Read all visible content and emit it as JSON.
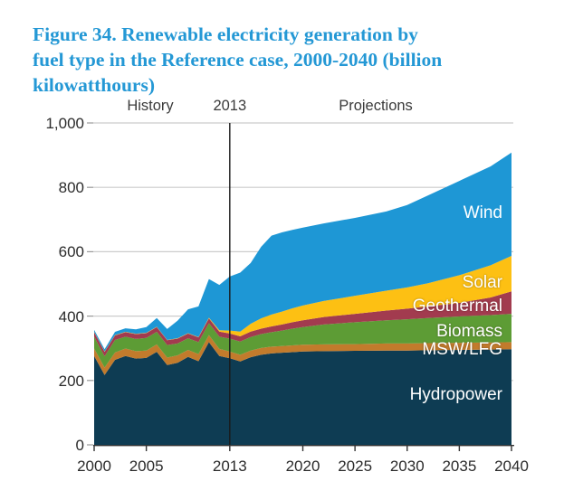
{
  "figure": {
    "title_lines": [
      "Figure 34. Renewable electricity generation by",
      "fuel type in the Reference case, 2000-2040 (billion",
      "kilowatthours)"
    ],
    "title_color": "#2498d5"
  },
  "chart_data": {
    "type": "area",
    "stacked": true,
    "title": "Figure 34. Renewable electricity generation by fuel type in the Reference case, 2000-2040 (billion kilowatthours)",
    "unit": "billion kilowatthours",
    "xlabel": "",
    "ylabel": "",
    "ylim": [
      0,
      1000
    ],
    "grid": true,
    "grid_color": "#cccccc",
    "axis_color": "#333333",
    "tick_color": "#999999",
    "divider_year": 2013,
    "divider_color": "#1a1a1a",
    "legend_position": "labels-on-chart-right",
    "header_annotations": [
      {
        "label": "History"
      },
      {
        "label": "2013"
      },
      {
        "label": "Projections"
      }
    ],
    "y_ticks": [
      0,
      200,
      400,
      600,
      800,
      1000
    ],
    "y_tick_labels": [
      "0",
      "200",
      "400",
      "600",
      "800",
      "1,000"
    ],
    "x_tick_years": [
      2000,
      2005,
      2013,
      2020,
      2025,
      2030,
      2035,
      2040
    ],
    "x_tick_labels": [
      "2000",
      "2005",
      "2013",
      "2020",
      "2025",
      "2030",
      "2035",
      "2040"
    ],
    "x": [
      2000,
      2001,
      2002,
      2003,
      2004,
      2005,
      2006,
      2007,
      2008,
      2009,
      2010,
      2011,
      2012,
      2013,
      2014,
      2015,
      2016,
      2017,
      2018,
      2019,
      2020,
      2022,
      2025,
      2028,
      2030,
      2032,
      2035,
      2038,
      2040
    ],
    "series": [
      {
        "name": "hydropower",
        "label": "Hydropower",
        "color": "#0e3c53",
        "values": [
          276,
          217,
          264,
          276,
          268,
          270,
          289,
          248,
          255,
          273,
          260,
          319,
          276,
          269,
          259,
          272,
          280,
          284,
          286,
          288,
          290,
          291,
          292,
          293,
          293,
          294,
          295,
          296,
          297
        ]
      },
      {
        "name": "msw_lfg",
        "label": "MSW/LFG",
        "color": "#c27b2c",
        "values": [
          23,
          23,
          23,
          23,
          23,
          23,
          23,
          23,
          23,
          22,
          22,
          22,
          22,
          21,
          21,
          21,
          21,
          21,
          21,
          21,
          21,
          21,
          21,
          22,
          22,
          22,
          22,
          22,
          22
        ]
      },
      {
        "name": "biomass",
        "label": "Biomass",
        "color": "#5d9c35",
        "values": [
          37,
          35,
          39,
          37,
          38,
          39,
          39,
          39,
          37,
          36,
          37,
          37,
          38,
          40,
          41,
          42,
          43,
          45,
          48,
          52,
          55,
          62,
          68,
          72,
          75,
          78,
          82,
          85,
          88
        ]
      },
      {
        "name": "geothermal",
        "label": "Geothermal",
        "color": "#a23b4f",
        "values": [
          14,
          14,
          14,
          14,
          15,
          15,
          15,
          15,
          15,
          15,
          15,
          15,
          16,
          16,
          16,
          17,
          17,
          18,
          19,
          20,
          21,
          23,
          26,
          30,
          33,
          36,
          42,
          55,
          70
        ]
      },
      {
        "name": "solar",
        "label": "Solar",
        "color": "#fdc013",
        "values": [
          1,
          1,
          1,
          1,
          1,
          1,
          1,
          1,
          1,
          1,
          1,
          2,
          4,
          9,
          15,
          24,
          32,
          37,
          40,
          43,
          46,
          50,
          56,
          62,
          66,
          72,
          86,
          100,
          110
        ]
      },
      {
        "name": "wind",
        "label": "Wind",
        "color": "#1e97d5",
        "values": [
          6,
          7,
          10,
          11,
          14,
          18,
          27,
          34,
          55,
          74,
          95,
          120,
          141,
          168,
          183,
          189,
          222,
          245,
          246,
          244,
          242,
          241,
          242,
          246,
          256,
          273,
          293,
          307,
          321
        ]
      }
    ]
  }
}
